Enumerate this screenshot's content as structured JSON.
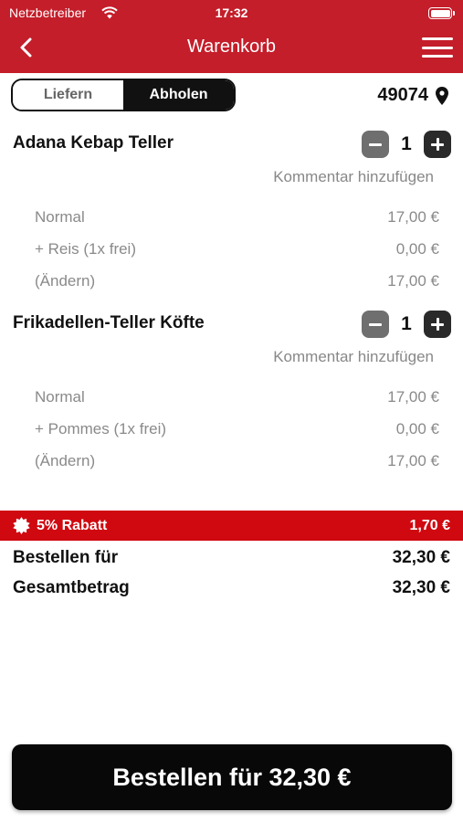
{
  "status_bar": {
    "carrier": "Netzbetreiber",
    "time": "17:32"
  },
  "header": {
    "title": "Warenkorb"
  },
  "delivery_toggle": {
    "options": [
      "Liefern",
      "Abholen"
    ],
    "selected": "Abholen"
  },
  "postal_code": "49074",
  "items": [
    {
      "name": "Adana Kebap Teller",
      "quantity": "1",
      "comment_label": "Kommentar hinzufügen",
      "lines": [
        {
          "label": "Normal",
          "price": "17,00 €"
        },
        {
          "label": "+ Reis (1x frei)",
          "price": "0,00 €"
        },
        {
          "label": "(Ändern)",
          "price": "17,00 €"
        }
      ]
    },
    {
      "name": "Frikadellen-Teller Köfte",
      "quantity": "1",
      "comment_label": "Kommentar hinzufügen",
      "lines": [
        {
          "label": "Normal",
          "price": "17,00 €"
        },
        {
          "label": "+ Pommes (1x frei)",
          "price": "0,00 €"
        },
        {
          "label": "(Ändern)",
          "price": "17,00 €"
        }
      ]
    }
  ],
  "discount": {
    "label": "5% Rabatt",
    "amount": "1,70 €"
  },
  "totals": [
    {
      "label": "Bestellen für",
      "value": "32,30 €"
    },
    {
      "label": "Gesamtbetrag",
      "value": "32,30 €"
    }
  ],
  "order_button": {
    "label": "Bestellen für 32,30 €"
  },
  "colors": {
    "brand_red": "#c41e2a",
    "discount_red": "#d00810",
    "dark": "#111111",
    "muted": "#8a8a8a"
  }
}
